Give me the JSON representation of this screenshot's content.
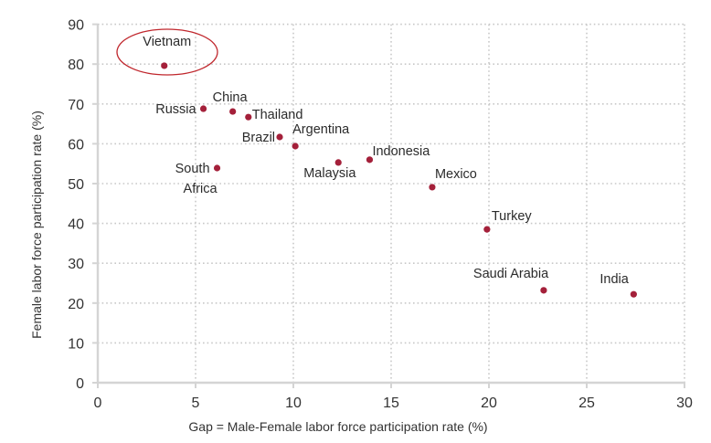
{
  "chart_data": {
    "type": "scatter",
    "title": "",
    "xlabel": "Gap = Male-Female labor force participation rate (%)",
    "ylabel": "Female labor force participation rate (%)",
    "xlim": [
      0,
      30
    ],
    "ylim": [
      0,
      90
    ],
    "xticks": [
      0,
      5,
      10,
      15,
      20,
      25,
      30
    ],
    "yticks": [
      0,
      10,
      20,
      30,
      40,
      50,
      60,
      70,
      80,
      90
    ],
    "grid": true,
    "legend": null,
    "point_color": "#a4203a",
    "annotation": {
      "type": "ellipse",
      "target": "Vietnam",
      "color": "#c0272d"
    },
    "points": [
      {
        "label": "Vietnam",
        "x": 3.4,
        "y": 79.6
      },
      {
        "label": "Russia",
        "x": 5.4,
        "y": 68.8
      },
      {
        "label": "China",
        "x": 6.9,
        "y": 68.1
      },
      {
        "label": "Thailand",
        "x": 7.7,
        "y": 66.7
      },
      {
        "label": "Brazil",
        "x": 9.3,
        "y": 61.7
      },
      {
        "label": "Argentina",
        "x": 10.1,
        "y": 59.4
      },
      {
        "label": "South Africa",
        "x": 6.1,
        "y": 53.9
      },
      {
        "label": "Malaysia",
        "x": 12.3,
        "y": 55.3
      },
      {
        "label": "Indonesia",
        "x": 13.9,
        "y": 56.0
      },
      {
        "label": "Mexico",
        "x": 17.1,
        "y": 49.1
      },
      {
        "label": "Turkey",
        "x": 19.9,
        "y": 38.5
      },
      {
        "label": "Saudi Arabia",
        "x": 22.8,
        "y": 23.2
      },
      {
        "label": "India",
        "x": 27.4,
        "y": 22.2
      }
    ]
  }
}
